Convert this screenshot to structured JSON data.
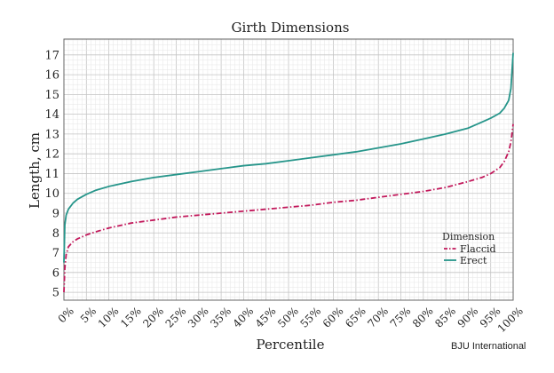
{
  "chart_data": {
    "type": "line",
    "title": "Girth Dimensions",
    "xlabel": "Percentile",
    "ylabel": "Length, cm",
    "xlim": [
      0,
      100
    ],
    "ylim": [
      4.6,
      17.8
    ],
    "yticks": [
      "5",
      "6",
      "7",
      "8",
      "9",
      "10",
      "11",
      "12",
      "13",
      "14",
      "15",
      "16",
      "17"
    ],
    "xticks": [
      "0%",
      "5%",
      "10%",
      "15%",
      "20%",
      "25%",
      "30%",
      "35%",
      "40%",
      "45%",
      "50%",
      "55%",
      "60%",
      "65%",
      "70%",
      "75%",
      "80%",
      "85%",
      "90%",
      "95%",
      "100%"
    ],
    "grid": true,
    "legend": {
      "title": "Dimension",
      "placement": "bottom-right"
    },
    "series": [
      {
        "name": "Flaccid",
        "color": "#c2185b",
        "dash": "dashdot",
        "x": [
          0,
          0.2,
          0.5,
          1,
          2,
          3,
          5,
          7,
          10,
          15,
          20,
          25,
          30,
          35,
          40,
          45,
          50,
          55,
          60,
          65,
          70,
          75,
          80,
          85,
          90,
          93,
          95,
          97,
          98,
          99,
          99.5,
          100
        ],
        "y": [
          5.0,
          6.2,
          6.9,
          7.3,
          7.55,
          7.7,
          7.9,
          8.05,
          8.25,
          8.5,
          8.65,
          8.8,
          8.9,
          9.0,
          9.1,
          9.2,
          9.3,
          9.4,
          9.55,
          9.65,
          9.8,
          9.95,
          10.1,
          10.3,
          10.6,
          10.8,
          11.0,
          11.3,
          11.6,
          12.1,
          12.6,
          13.5
        ]
      },
      {
        "name": "Erect",
        "color": "#26958a",
        "dash": "solid",
        "x": [
          0,
          0.2,
          0.5,
          1,
          2,
          3,
          5,
          7,
          10,
          15,
          20,
          25,
          30,
          35,
          40,
          45,
          50,
          55,
          60,
          65,
          70,
          75,
          80,
          85,
          90,
          93,
          95,
          97,
          98,
          99,
          99.5,
          100
        ],
        "y": [
          6.5,
          8.4,
          8.9,
          9.2,
          9.5,
          9.7,
          9.95,
          10.15,
          10.35,
          10.6,
          10.8,
          10.95,
          11.1,
          11.25,
          11.4,
          11.5,
          11.65,
          11.8,
          11.95,
          12.1,
          12.3,
          12.5,
          12.75,
          13.0,
          13.3,
          13.6,
          13.8,
          14.05,
          14.3,
          14.7,
          15.3,
          17.1
        ]
      }
    ]
  },
  "source_label": "BJU International"
}
